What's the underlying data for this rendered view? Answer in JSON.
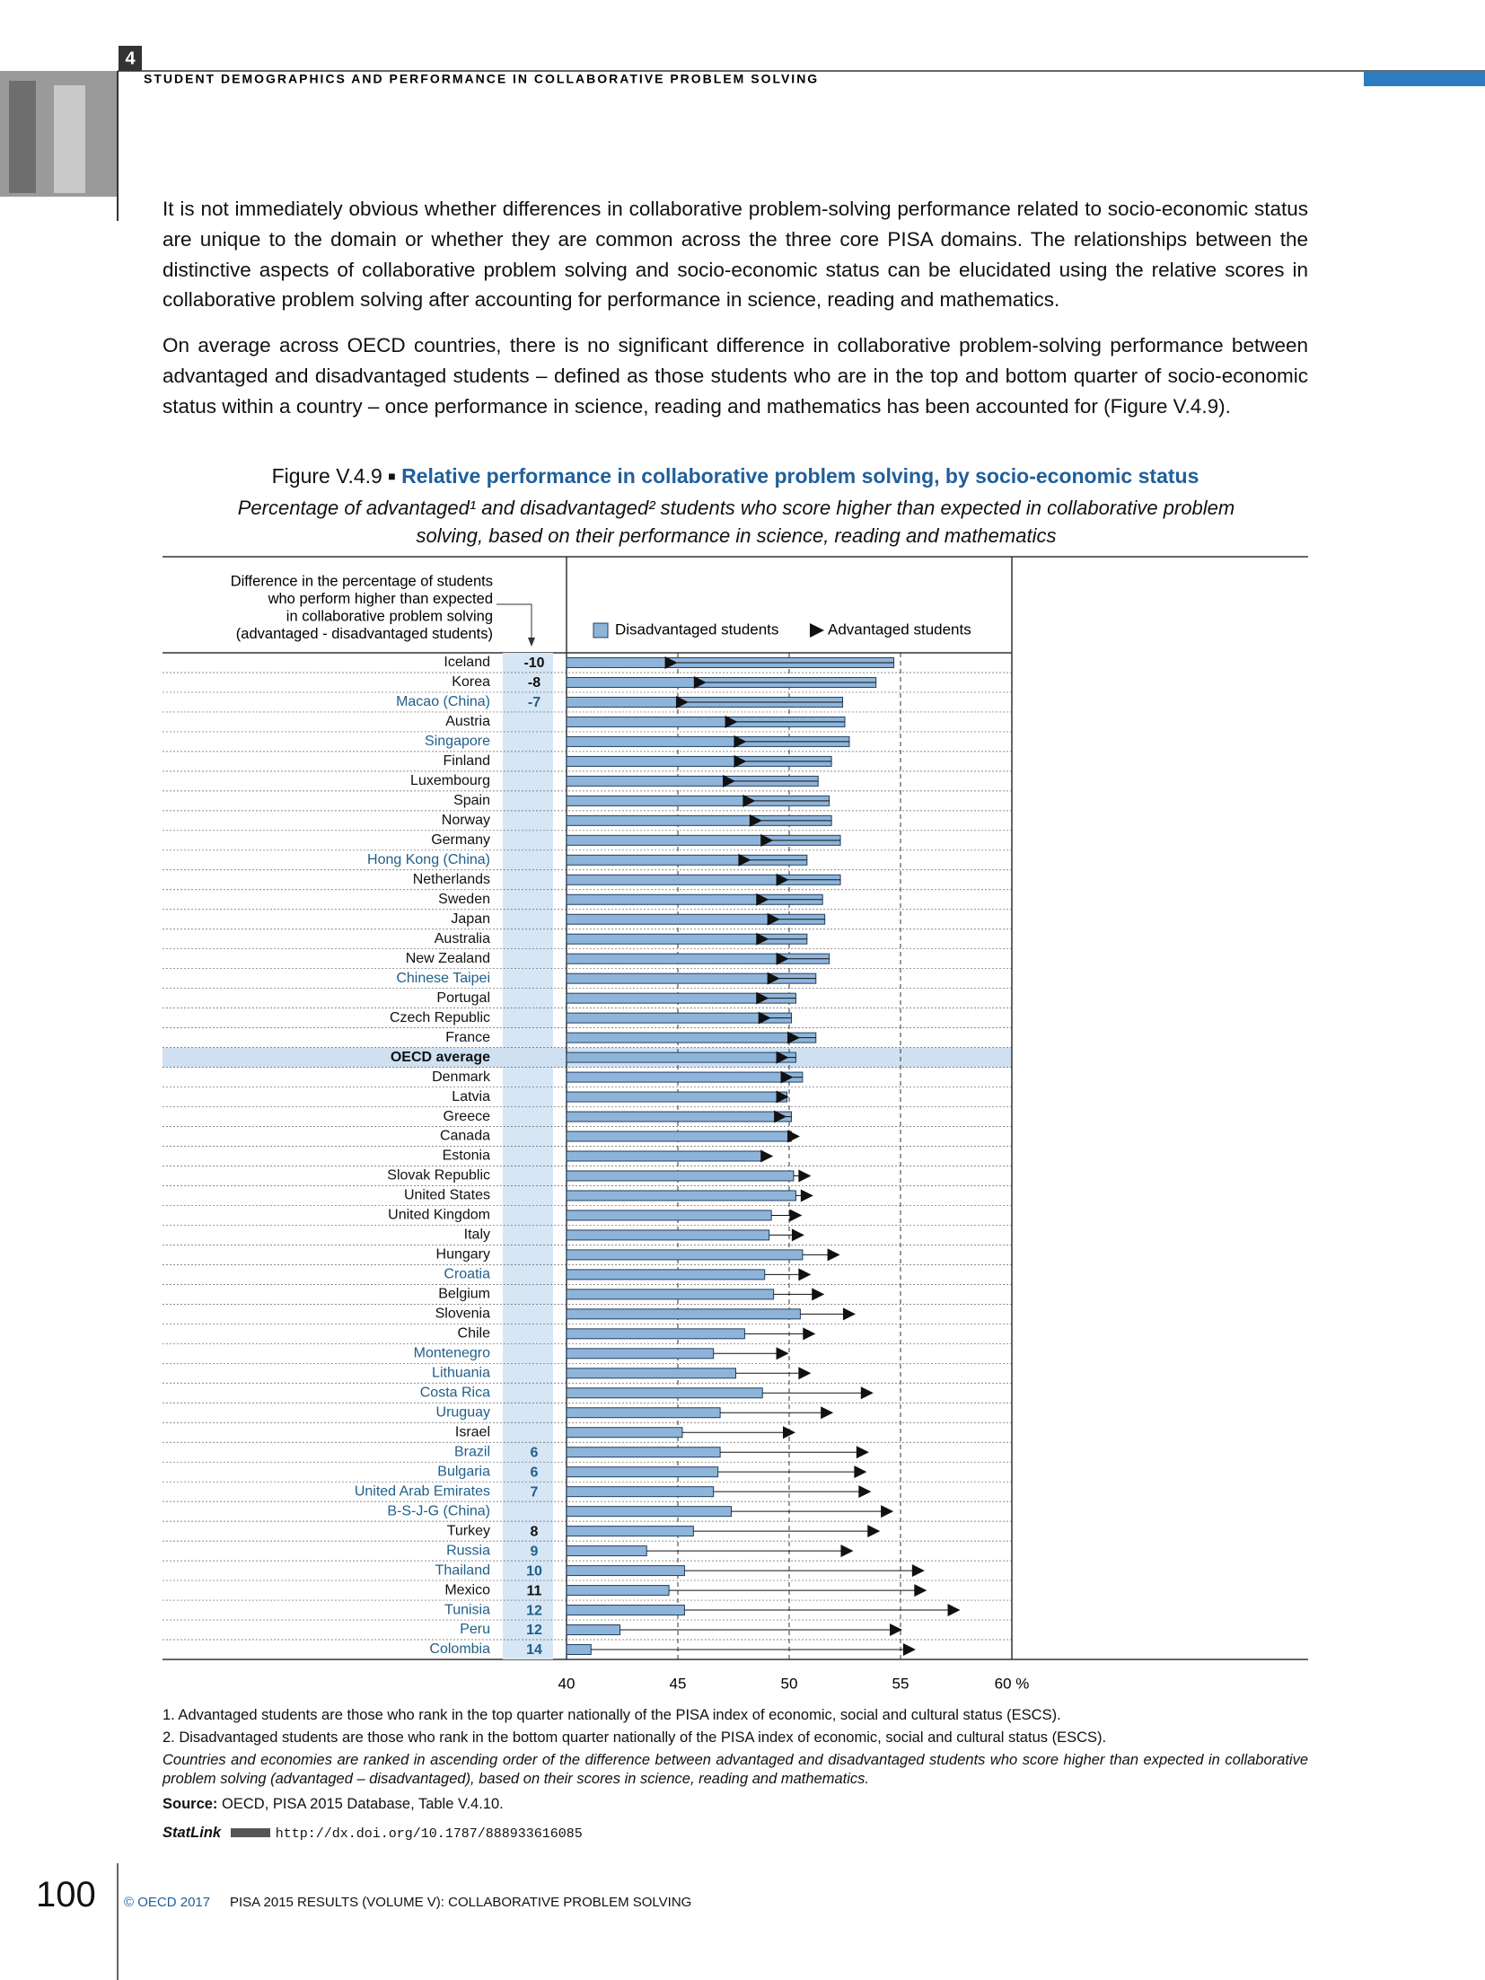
{
  "header": {
    "section": "4",
    "running_title": "STUDENT DEMOGRAPHICS AND PERFORMANCE IN COLLABORATIVE PROBLEM SOLVING"
  },
  "paragraphs": [
    "It is not immediately obvious whether differences in collaborative problem-solving performance related to socio-economic status are unique to the domain or whether they are common across the three core PISA domains. The relationships between the distinctive aspects of collaborative problem solving and socio-economic status can be elucidated using the relative scores in collaborative problem solving after accounting for performance in science, reading and mathematics.",
    "On average across OECD countries, there is no significant difference in collaborative problem-solving performance between advantaged and disadvantaged students – defined as those students who are in the top and bottom quarter of socio-economic status within a country – once performance in science, reading and mathematics has been accounted for (Figure V.4.9)."
  ],
  "figure": {
    "label": "Figure V.4.9",
    "title": "Relative performance in collaborative problem solving, by socio-economic status",
    "subtitle": "Percentage of advantaged¹ and disadvantaged² students who score higher than expected in collaborative problem solving, based on their performance in science, reading and mathematics"
  },
  "chart_data": {
    "type": "bar",
    "orientation": "horizontal",
    "difference_label": [
      "Difference in the percentage of students",
      "who perform higher than expected",
      "in collaborative problem solving",
      "(advantaged - disadvantaged students)"
    ],
    "categories": [
      "Iceland",
      "Korea",
      "Macao (China)",
      "Austria",
      "Singapore",
      "Finland",
      "Luxembourg",
      "Spain",
      "Norway",
      "Germany",
      "Hong Kong (China)",
      "Netherlands",
      "Sweden",
      "Japan",
      "Australia",
      "New Zealand",
      "Chinese Taipei",
      "Portugal",
      "Czech Republic",
      "France",
      "OECD average",
      "Denmark",
      "Latvia",
      "Greece",
      "Canada",
      "Estonia",
      "Slovak Republic",
      "United States",
      "United Kingdom",
      "Italy",
      "Hungary",
      "Croatia",
      "Belgium",
      "Slovenia",
      "Chile",
      "Montenegro",
      "Lithuania",
      "Costa Rica",
      "Uruguay",
      "Israel",
      "Brazil",
      "Bulgaria",
      "United Arab Emirates",
      "B-S-J-G (China)",
      "Turkey",
      "Russia",
      "Thailand",
      "Mexico",
      "Tunisia",
      "Peru",
      "Colombia"
    ],
    "category_colors": [
      "#111111",
      "#111111",
      "#1f5f8b",
      "#111111",
      "#1f5f8b",
      "#111111",
      "#111111",
      "#111111",
      "#111111",
      "#111111",
      "#1f5f8b",
      "#111111",
      "#111111",
      "#111111",
      "#111111",
      "#111111",
      "#1f5f8b",
      "#111111",
      "#111111",
      "#111111",
      "#111111",
      "#111111",
      "#111111",
      "#111111",
      "#111111",
      "#111111",
      "#111111",
      "#111111",
      "#111111",
      "#111111",
      "#111111",
      "#1f5f8b",
      "#111111",
      "#111111",
      "#111111",
      "#1f5f8b",
      "#1f5f8b",
      "#1f5f8b",
      "#1f5f8b",
      "#111111",
      "#1f5f8b",
      "#1f5f8b",
      "#1f5f8b",
      "#1f5f8b",
      "#111111",
      "#1f5f8b",
      "#1f5f8b",
      "#111111",
      "#1f5f8b",
      "#1f5f8b",
      "#1f5f8b"
    ],
    "highlight": "OECD average",
    "highlight_color": "#cfe0f0",
    "differences": [
      -10,
      -8,
      -7,
      null,
      null,
      null,
      null,
      null,
      null,
      null,
      null,
      null,
      null,
      null,
      null,
      null,
      null,
      null,
      null,
      null,
      null,
      null,
      null,
      null,
      null,
      null,
      null,
      null,
      null,
      null,
      null,
      null,
      null,
      null,
      null,
      null,
      null,
      null,
      null,
      null,
      6,
      6,
      7,
      null,
      8,
      9,
      10,
      11,
      12,
      12,
      14
    ],
    "series": [
      {
        "name": "Disadvantaged students",
        "color": "#8fb4d9",
        "values": [
          54.7,
          53.9,
          52.4,
          52.5,
          52.7,
          51.9,
          51.3,
          51.8,
          51.9,
          52.3,
          50.8,
          52.3,
          51.5,
          51.6,
          50.8,
          51.8,
          51.2,
          50.3,
          50.1,
          51.2,
          50.3,
          50.6,
          49.9,
          50.1,
          50.1,
          48.8,
          50.2,
          50.3,
          49.2,
          49.1,
          50.6,
          48.9,
          49.3,
          50.5,
          48.0,
          46.6,
          47.6,
          48.8,
          46.9,
          45.2,
          46.9,
          46.8,
          46.6,
          47.4,
          45.7,
          43.6,
          45.3,
          44.6,
          45.3,
          42.4,
          41.1
        ]
      },
      {
        "name": "Advantaged students",
        "color": "#111111",
        "values": [
          44.7,
          46.0,
          45.2,
          47.4,
          47.8,
          47.8,
          47.3,
          48.2,
          48.5,
          49.0,
          48.0,
          49.7,
          48.8,
          49.3,
          48.8,
          49.7,
          49.3,
          48.8,
          48.9,
          50.2,
          49.7,
          49.9,
          49.7,
          49.6,
          50.2,
          49.0,
          50.7,
          50.8,
          50.3,
          50.4,
          52.0,
          50.7,
          51.3,
          52.7,
          50.9,
          49.7,
          50.7,
          53.5,
          51.7,
          50.0,
          53.3,
          53.2,
          53.4,
          54.4,
          53.8,
          52.6,
          55.8,
          55.9,
          57.4,
          54.8,
          55.4
        ]
      }
    ],
    "xlim": [
      40,
      60
    ],
    "xticks": [
      40,
      45,
      50,
      55,
      {
        "value": 60,
        "label": "60 %"
      }
    ],
    "grid": true
  },
  "notes": [
    "1. Advantaged students are those who rank in the top quarter nationally of the PISA index of economic, social and cultural status (ESCS).",
    "2. Disadvantaged students are those who rank in the bottom quarter nationally of the PISA index of economic, social and cultural status (ESCS).",
    "Countries and economies are ranked in ascending order of the difference between advantaged and disadvantaged students who score higher than expected in collaborative problem solving (advantaged – disadvantaged), based on their scores in science, reading and mathematics."
  ],
  "source": {
    "label": "Source:",
    "text": "OECD, PISA 2015 Database, Table V.4.10."
  },
  "statlink": {
    "label": "StatLink",
    "url": "http://dx.doi.org/10.1787/888933616085"
  },
  "footer": {
    "page": "100",
    "copyright": "© OECD 2017",
    "publication": "PISA 2015 RESULTS (VOLUME V): COLLABORATIVE PROBLEM SOLVING"
  }
}
